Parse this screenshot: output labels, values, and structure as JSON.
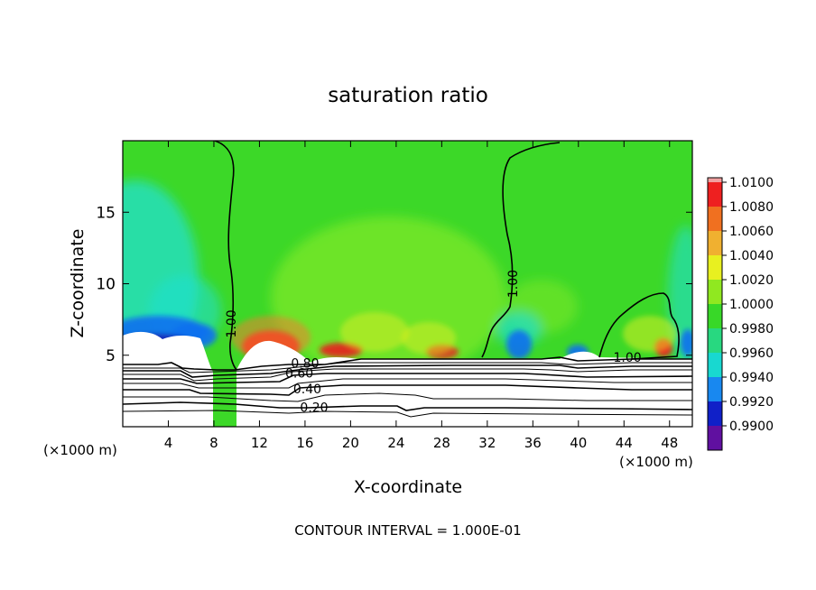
{
  "chart_data": {
    "type": "contour",
    "title": "saturation ratio",
    "xlabel": "X-coordinate",
    "ylabel": "Z-coordinate",
    "x_unit": "(×1000 m)",
    "x_unit_right": "(×1000 m)",
    "xlim": [
      0,
      50
    ],
    "ylim": [
      0,
      20
    ],
    "xticks": [
      4,
      8,
      12,
      16,
      20,
      24,
      28,
      32,
      36,
      40,
      44,
      48
    ],
    "yticks": [
      5,
      10,
      15
    ],
    "footer": "CONTOUR INTERVAL = 1.000E-01",
    "colorbar": {
      "levels": [
        "1.0100",
        "1.0080",
        "1.0060",
        "1.0040",
        "1.0020",
        "1.0000",
        "0.9980",
        "0.9960",
        "0.9940",
        "0.9920",
        "0.9900"
      ],
      "colors": [
        "#ee2020",
        "#f07020",
        "#f0b030",
        "#e8f020",
        "#90e820",
        "#38d828",
        "#28d880",
        "#18d8d0",
        "#1888f0",
        "#1020c8",
        "#6010a0"
      ],
      "top_color": "#f0a0a0"
    },
    "field_colors": {
      "green": "#3cd828",
      "light_green": "#7ce82a",
      "cyan": "#20e0d0",
      "blue": "#1070f0",
      "dark_blue": "#1828b8",
      "purple": "#5010a0",
      "red": "#e82020",
      "pink": "#f0a0a0",
      "orange": "#f08030",
      "yellow": "#e8f020"
    },
    "contour_labels": [
      {
        "text": "1.00",
        "x": 9.6,
        "y": 7.2,
        "angle": -90
      },
      {
        "text": "1.00",
        "x": 34.3,
        "y": 10.0,
        "angle": -90
      },
      {
        "text": "1.00",
        "x": 44.3,
        "y": 4.8,
        "angle": 0
      },
      {
        "text": "0.80",
        "x": 16.0,
        "y": 4.4,
        "angle": 0
      },
      {
        "text": "0.60",
        "x": 15.5,
        "y": 3.7,
        "angle": 0
      },
      {
        "text": "0.40",
        "x": 16.2,
        "y": 2.6,
        "angle": 0
      },
      {
        "text": "0.20",
        "x": 16.8,
        "y": 1.3,
        "angle": 0
      }
    ]
  }
}
